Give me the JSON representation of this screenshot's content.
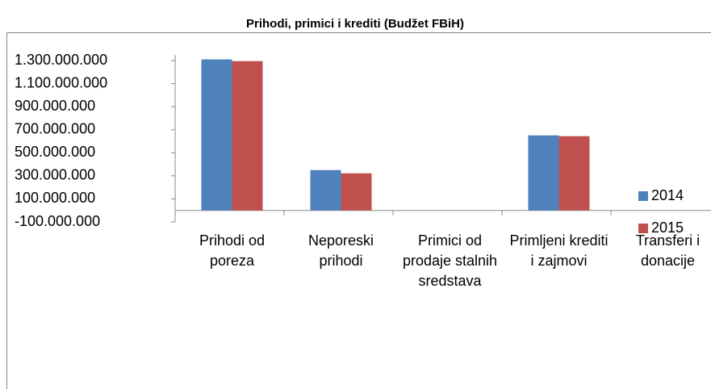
{
  "chart_data": {
    "type": "bar",
    "title": "Prihodi, primici i krediti (Budžet FBiH)",
    "categories": [
      "Prihodi od poreza",
      "Neporeski prihodi",
      "Primici od prodaje stalnih sredstava",
      "Primljeni krediti i zajmovi",
      "Transferi i donacije"
    ],
    "series": [
      {
        "name": "2014",
        "color": "#4f81bd",
        "values": [
          1310000000,
          350000000,
          0,
          651000000,
          0
        ]
      },
      {
        "name": "2015",
        "color": "#c0504d",
        "values": [
          1295000000,
          322000000,
          0,
          644000000,
          0
        ]
      }
    ],
    "ylim": [
      -100000000,
      1300000000
    ],
    "yticks": [
      {
        "value": -100000000,
        "label": "-100.000.000"
      },
      {
        "value": 100000000,
        "label": "100.000.000"
      },
      {
        "value": 300000000,
        "label": "300.000.000"
      },
      {
        "value": 500000000,
        "label": "500.000.000"
      },
      {
        "value": 700000000,
        "label": "700.000.000"
      },
      {
        "value": 900000000,
        "label": "900.000.000"
      },
      {
        "value": 1100000000,
        "label": "1.100.000.000"
      },
      {
        "value": 1300000000,
        "label": "1.300.000.000"
      }
    ],
    "grid": false,
    "legend": "right"
  }
}
